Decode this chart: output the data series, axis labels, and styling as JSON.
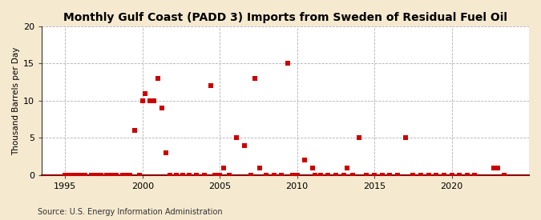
{
  "title": "Monthly Gulf Coast (PADD 3) Imports from Sweden of Residual Fuel Oil",
  "ylabel": "Thousand Barrels per Day",
  "source": "Source: U.S. Energy Information Administration",
  "xlim": [
    1993.5,
    2025
  ],
  "ylim": [
    0,
    20
  ],
  "yticks": [
    0,
    5,
    10,
    15,
    20
  ],
  "xticks": [
    1995,
    2000,
    2005,
    2010,
    2015,
    2020
  ],
  "background_color": "#f5e9cf",
  "plot_bg_color": "#ffffff",
  "marker_color": "#cc0000",
  "marker_size": 18,
  "data_points": [
    [
      1995.0,
      0.0
    ],
    [
      1995.2,
      0.0
    ],
    [
      1995.5,
      0.0
    ],
    [
      1995.8,
      0.0
    ],
    [
      1996.0,
      0.0
    ],
    [
      1996.3,
      0.0
    ],
    [
      1996.7,
      0.0
    ],
    [
      1997.0,
      0.0
    ],
    [
      1997.3,
      0.0
    ],
    [
      1997.7,
      0.0
    ],
    [
      1998.0,
      0.0
    ],
    [
      1998.3,
      0.0
    ],
    [
      1998.7,
      0.0
    ],
    [
      1999.0,
      0.0
    ],
    [
      1999.2,
      0.0
    ],
    [
      1999.5,
      6.0
    ],
    [
      1999.8,
      0.0
    ],
    [
      2000.0,
      10.0
    ],
    [
      2000.17,
      11.0
    ],
    [
      2000.5,
      10.0
    ],
    [
      2000.75,
      10.0
    ],
    [
      2001.0,
      13.0
    ],
    [
      2001.25,
      9.0
    ],
    [
      2001.5,
      3.0
    ],
    [
      2001.8,
      0.0
    ],
    [
      2002.2,
      0.0
    ],
    [
      2002.6,
      0.0
    ],
    [
      2003.0,
      0.0
    ],
    [
      2003.5,
      0.0
    ],
    [
      2004.0,
      0.0
    ],
    [
      2004.42,
      12.0
    ],
    [
      2004.7,
      0.0
    ],
    [
      2005.0,
      0.0
    ],
    [
      2005.25,
      1.0
    ],
    [
      2005.6,
      0.0
    ],
    [
      2006.1,
      5.0
    ],
    [
      2006.6,
      4.0
    ],
    [
      2007.0,
      0.0
    ],
    [
      2007.25,
      13.0
    ],
    [
      2007.6,
      1.0
    ],
    [
      2008.0,
      0.0
    ],
    [
      2008.5,
      0.0
    ],
    [
      2009.0,
      0.0
    ],
    [
      2009.42,
      15.0
    ],
    [
      2009.7,
      0.0
    ],
    [
      2010.0,
      0.0
    ],
    [
      2010.5,
      2.0
    ],
    [
      2011.0,
      1.0
    ],
    [
      2011.17,
      0.0
    ],
    [
      2011.5,
      0.0
    ],
    [
      2012.0,
      0.0
    ],
    [
      2012.5,
      0.0
    ],
    [
      2013.0,
      0.0
    ],
    [
      2013.25,
      1.0
    ],
    [
      2013.6,
      0.0
    ],
    [
      2014.0,
      5.0
    ],
    [
      2014.5,
      0.0
    ],
    [
      2015.0,
      0.0
    ],
    [
      2015.5,
      0.0
    ],
    [
      2016.0,
      0.0
    ],
    [
      2016.5,
      0.0
    ],
    [
      2017.0,
      5.0
    ],
    [
      2017.5,
      0.0
    ],
    [
      2018.0,
      0.0
    ],
    [
      2018.5,
      0.0
    ],
    [
      2019.0,
      0.0
    ],
    [
      2019.5,
      0.0
    ],
    [
      2020.0,
      0.0
    ],
    [
      2020.5,
      0.0
    ],
    [
      2021.0,
      0.0
    ],
    [
      2021.5,
      0.0
    ],
    [
      2022.7,
      1.0
    ],
    [
      2023.0,
      1.0
    ],
    [
      2023.4,
      0.0
    ]
  ]
}
